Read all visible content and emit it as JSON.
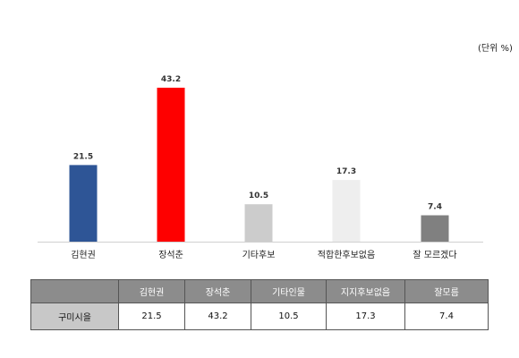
{
  "unit_label": "(단위 %)",
  "colors": {
    "bar_colors": [
      "#2e5596",
      "#fe0000",
      "#cccccc",
      "#eeeeee",
      "#808080"
    ],
    "axis": "#d0d0d0",
    "table_header_bg": "#8c8c8c",
    "table_row_header_bg": "#c8c8c8"
  },
  "chart_data": {
    "type": "bar",
    "categories": [
      "김현권",
      "장석춘",
      "기타후보",
      "적합한후보없음",
      "잘 모르겠다"
    ],
    "values": [
      21.5,
      43.2,
      10.5,
      17.3,
      7.4
    ],
    "value_labels": [
      "21.5",
      "43.2",
      "10.5",
      "17.3",
      "7.4"
    ],
    "title": "",
    "xlabel": "",
    "ylabel": "",
    "ylim": [
      0,
      43.2
    ],
    "grid": false,
    "legend": "none"
  },
  "table": {
    "corner": "",
    "headers": [
      "김현권",
      "장석춘",
      "기타인물",
      "지지후보없음",
      "잘모름"
    ],
    "rows": [
      {
        "label": "구미시을",
        "values": [
          "21.5",
          "43.2",
          "10.5",
          "17.3",
          "7.4"
        ]
      }
    ]
  }
}
